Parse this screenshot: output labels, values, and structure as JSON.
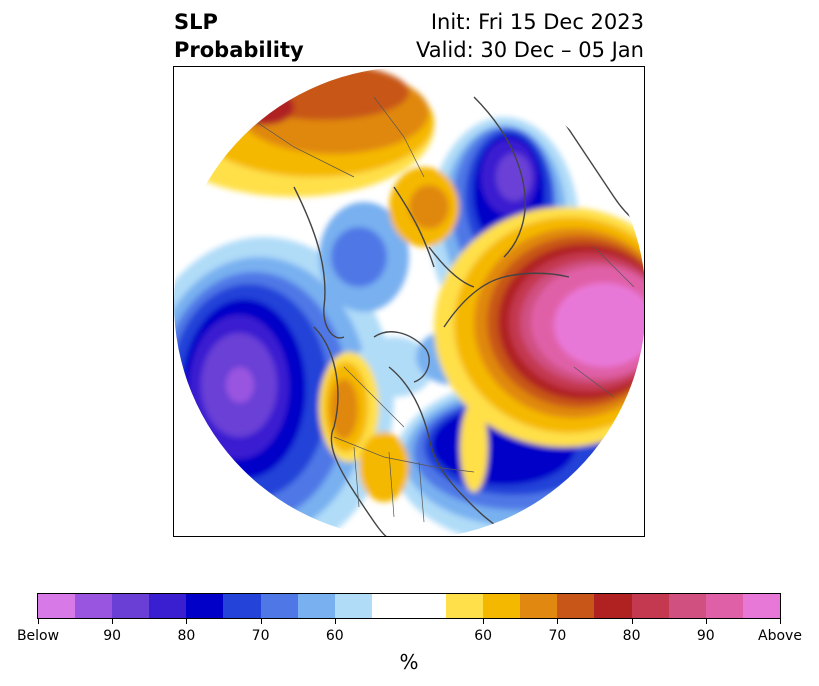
{
  "title": {
    "left_line1": "SLP",
    "left_line2": "Probability",
    "right_line1": "Init: Fri 15 Dec 2023",
    "right_line2": "Valid: 30 Dec – 05 Jan"
  },
  "map": {
    "projection": "north-polar-stereographic",
    "variable": "SLP",
    "features": [
      "coastlines",
      "country-borders",
      "us-state-borders",
      "canada-province-borders"
    ]
  },
  "colorbar": {
    "unit_label": "%",
    "tick_labels": [
      "Below",
      "90",
      "80",
      "70",
      "60",
      "60",
      "70",
      "80",
      "90",
      "Above"
    ],
    "below_colors": [
      "#d77ae8",
      "#9a55e0",
      "#6a3fd6",
      "#3a1fd0",
      "#0000c8",
      "#2443d8",
      "#4f78e6",
      "#78b0f0",
      "#b0dcf8"
    ],
    "neutral_color": "#ffffff",
    "above_colors": [
      "#ffe04a",
      "#f5b800",
      "#e08810",
      "#c85618",
      "#b02222",
      "#c43850",
      "#d05080",
      "#e060a8",
      "#e878d8"
    ]
  }
}
